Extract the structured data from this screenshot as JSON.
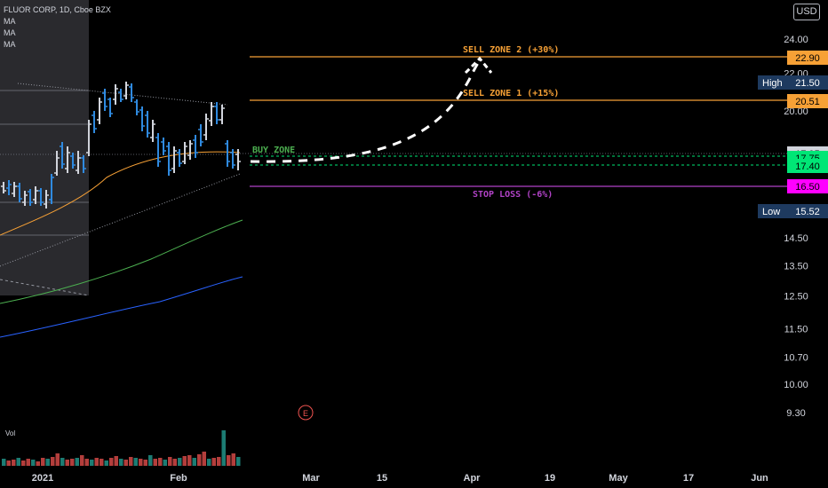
{
  "header": {
    "title": "FLUOR CORP, 1D, Cboe BZX",
    "indicators": [
      "MA",
      "MA",
      "MA"
    ],
    "currency": "USD",
    "volume_label": "Vol",
    "earnings_marker": "E"
  },
  "chart_data": {
    "type": "candlestick",
    "yaxis": {
      "ticks": [
        24.0,
        22.0,
        20.0,
        14.5,
        13.5,
        12.5,
        11.5,
        10.7,
        10.0,
        9.3
      ],
      "tick_labels": [
        "24.00",
        "22.00",
        "20.00",
        "14.50",
        "13.50",
        "12.50",
        "11.50",
        "10.70",
        "10.00",
        "9.30"
      ],
      "scale": "log",
      "range": [
        8.9,
        26.0
      ]
    },
    "xaxis": {
      "labels": [
        "2021",
        "Feb",
        "Mar",
        "15",
        "Apr",
        "19",
        "May",
        "17",
        "Jun"
      ]
    },
    "price_labels": [
      {
        "value": 22.9,
        "text": "22.90",
        "color": "#f7a136"
      },
      {
        "value": 21.5,
        "text": "21.50",
        "prefix": "High",
        "color": "#1e3a5f"
      },
      {
        "value": 20.51,
        "text": "20.51",
        "color": "#f7a136"
      },
      {
        "value": 17.95,
        "text": "17.95",
        "color": "#d1d4dc"
      },
      {
        "value": 17.75,
        "text": "17.75",
        "color": "#00e676"
      },
      {
        "value": 17.4,
        "text": "17.40",
        "color": "#00e676"
      },
      {
        "value": 16.5,
        "text": "16.50",
        "color": "#ff00ff"
      },
      {
        "value": 15.52,
        "text": "15.52",
        "prefix": "Low",
        "color": "#1e3a5f"
      }
    ],
    "zones": [
      {
        "label": "SELL ZONE 2 (+30%)",
        "value": 22.9,
        "color": "#f7a136"
      },
      {
        "label": "SELL ZONE 1 (+15%)",
        "value": 20.51,
        "color": "#f7a136"
      },
      {
        "label": "BUY ZONE",
        "value": 17.75,
        "color": "#4caf50"
      },
      {
        "label": "STOP LOSS (-6%)",
        "value": 16.5,
        "color": "#b042c6"
      }
    ],
    "colors": {
      "up_bar": "#d1d4dc",
      "down_bar": "#2f8ae0",
      "ma_short": "#f7a136",
      "ma_mid": "#4caf50",
      "ma_long": "#2962ff",
      "stop_loss": "#b042c6",
      "volume_up": "#26a69a",
      "volume_down": "#ef5350"
    }
  }
}
